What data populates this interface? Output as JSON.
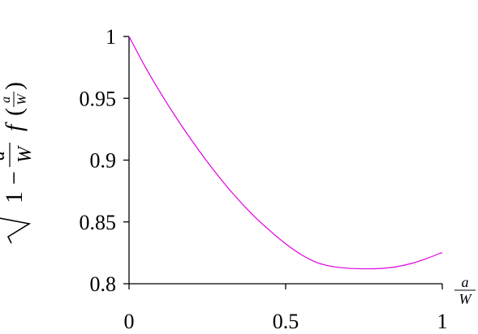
{
  "chart_data": {
    "type": "line",
    "title": "",
    "xlabel": {
      "numerator": "a",
      "denominator": "W"
    },
    "ylabel": {
      "radical_one": "1",
      "minus": "−",
      "fraction_numerator": "a",
      "fraction_denominator": "W",
      "function": "f",
      "open_paren": "(",
      "close_paren": ")",
      "arg_numerator": "a",
      "arg_denominator": "W"
    },
    "xlim": [
      0,
      1
    ],
    "ylim": [
      0.8,
      1
    ],
    "x_ticks": [
      0,
      0.5,
      1
    ],
    "x_tick_labels": [
      "0",
      "0.5",
      "1"
    ],
    "y_ticks": [
      0.8,
      0.85,
      0.9,
      0.95,
      1
    ],
    "y_tick_labels": [
      "0.8",
      "0.85",
      "0.9",
      "0.95",
      "1"
    ],
    "grid": false,
    "series": [
      {
        "color": "#e000e0",
        "x": [
          0,
          0.05,
          0.1,
          0.15,
          0.2,
          0.25,
          0.3,
          0.35,
          0.4,
          0.45,
          0.5,
          0.55,
          0.6,
          0.65,
          0.7,
          0.75,
          0.8,
          0.85,
          0.9,
          0.95,
          1.0
        ],
        "y": [
          1.0,
          0.9762,
          0.9546,
          0.9346,
          0.916,
          0.8986,
          0.8824,
          0.8677,
          0.8545,
          0.8428,
          0.8323,
          0.8235,
          0.8171,
          0.8139,
          0.8125,
          0.8121,
          0.8123,
          0.8136,
          0.8163,
          0.8204,
          0.8253
        ]
      }
    ]
  }
}
